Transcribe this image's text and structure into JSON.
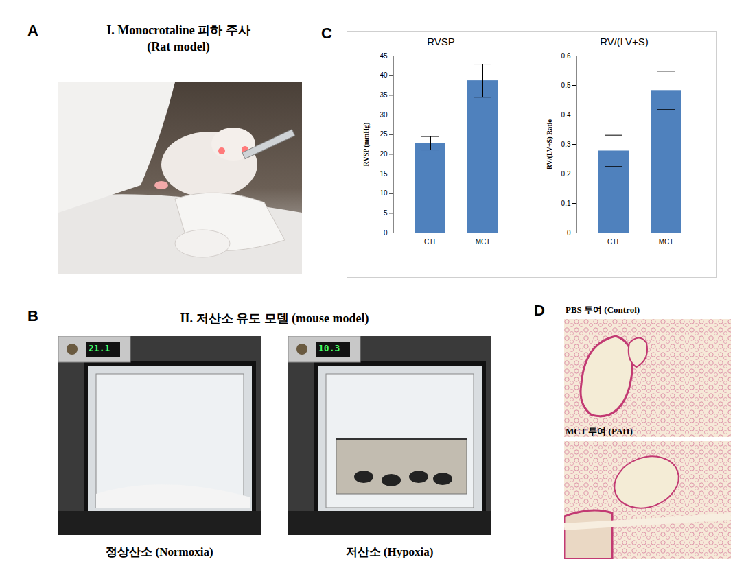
{
  "panels": {
    "A": {
      "label": "A",
      "title": "I. Monocrotaline 피하 주사",
      "subtitle": "(Rat model)"
    },
    "B": {
      "label": "B",
      "title": "II. 저산소 유도 모델 (mouse model)",
      "chambers": [
        {
          "caption": "정상산소 (Normoxia)",
          "display": "21.1"
        },
        {
          "caption": "저산소 (Hypoxia)",
          "display": "10.3"
        }
      ]
    },
    "C": {
      "label": "C"
    },
    "D": {
      "label": "D",
      "images": [
        {
          "caption": "PBS 투여 (Control)"
        },
        {
          "caption": "MCT 투여 (PAH)"
        }
      ]
    }
  },
  "chart_data": [
    {
      "type": "bar",
      "title": "RVSP",
      "y_label": "RVSP (mmHg)",
      "categories": [
        "CTL",
        "MCT"
      ],
      "values": [
        22.8,
        38.7
      ],
      "errors": [
        1.7,
        4.2
      ],
      "color": "#4f81bd",
      "ylim": [
        0,
        45
      ],
      "yticks": [
        0,
        5,
        10,
        15,
        20,
        25,
        30,
        35,
        40,
        45
      ],
      "grid": false
    },
    {
      "type": "bar",
      "title": "RV/(LV+S)",
      "y_label": "RV/(LV+S) Ratio",
      "categories": [
        "CTL",
        "MCT"
      ],
      "values": [
        0.278,
        0.483
      ],
      "errors": [
        0.053,
        0.065
      ],
      "color": "#4f81bd",
      "ylim": [
        0,
        0.6
      ],
      "yticks": [
        0,
        0.1,
        0.2,
        0.3,
        0.4,
        0.5,
        0.6
      ],
      "grid": false
    }
  ]
}
